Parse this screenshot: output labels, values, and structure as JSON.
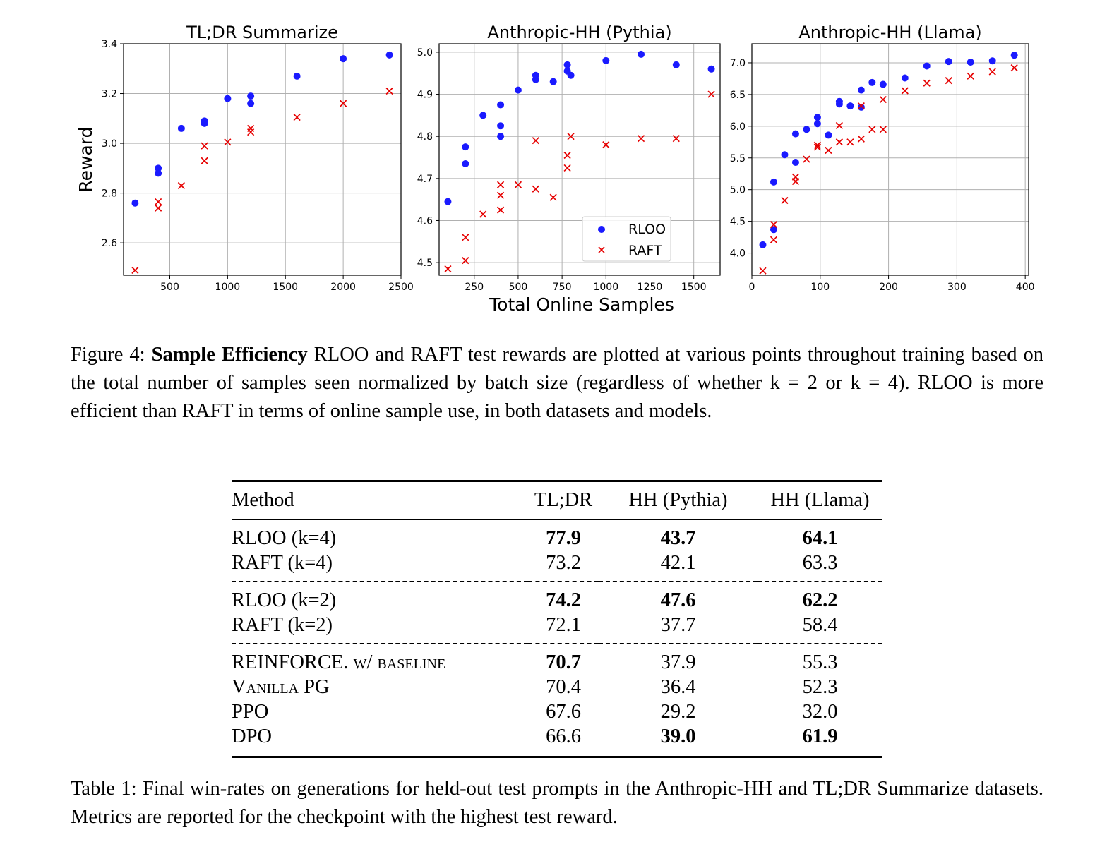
{
  "figure": {
    "shared_xlabel": "Total Online Samples",
    "shared_ylabel": "Reward",
    "legend": {
      "placement": "lower-right of middle panel",
      "entries": [
        {
          "name": "RLOO",
          "color": "#1a1aff",
          "marker": "circle"
        },
        {
          "name": "RAFT",
          "color": "#e60000",
          "marker": "x"
        }
      ]
    },
    "caption_label": "Figure 4:",
    "caption_bold": "Sample Efficiency",
    "caption_text": "RLOO and RAFT test rewards are plotted at various points throughout training based on the total number of samples seen normalized by batch size (regardless of whether k = 2 or k = 4). RLOO is more efficient than RAFT in terms of online sample use, in both datasets and models."
  },
  "chart_data": [
    {
      "type": "scatter",
      "title": "TL;DR Summarize",
      "xlabel": "",
      "ylabel": "Reward",
      "xlim": [
        100,
        2500
      ],
      "ylim": [
        2.47,
        3.4
      ],
      "xticks": [
        500,
        1000,
        1500,
        2000,
        2500
      ],
      "yticks": [
        2.6,
        2.8,
        3.0,
        3.2,
        3.4
      ],
      "ytick_labels": [
        "2.6",
        "2.8",
        "3.0",
        "3.2",
        "3.4"
      ],
      "grid": true,
      "series": [
        {
          "name": "RLOO",
          "color": "#1a1aff",
          "marker": "circle",
          "x": [
            200,
            400,
            400,
            600,
            800,
            800,
            1000,
            1200,
            1200,
            1600,
            2000,
            2400
          ],
          "y": [
            2.76,
            2.9,
            2.88,
            3.06,
            3.09,
            3.08,
            3.18,
            3.19,
            3.16,
            3.27,
            3.34,
            3.355
          ]
        },
        {
          "name": "RAFT",
          "color": "#e60000",
          "marker": "x",
          "x": [
            200,
            400,
            400,
            600,
            800,
            800,
            1000,
            1200,
            1200,
            1600,
            2000,
            2400
          ],
          "y": [
            2.49,
            2.765,
            2.74,
            2.83,
            2.99,
            2.93,
            3.005,
            3.06,
            3.045,
            3.105,
            3.16,
            3.21
          ]
        }
      ]
    },
    {
      "type": "scatter",
      "title": "Anthropic-HH (Pythia)",
      "xlabel": "Total Online Samples",
      "ylabel": "",
      "xlim": [
        50,
        1650
      ],
      "ylim": [
        4.47,
        5.02
      ],
      "xticks": [
        250,
        500,
        750,
        1000,
        1250,
        1500
      ],
      "yticks": [
        4.5,
        4.6,
        4.7,
        4.8,
        4.9,
        5.0
      ],
      "ytick_labels": [
        "4.5",
        "4.6",
        "4.7",
        "4.8",
        "4.9",
        "5.0"
      ],
      "grid": true,
      "series": [
        {
          "name": "RLOO",
          "color": "#1a1aff",
          "marker": "circle",
          "x": [
            100,
            200,
            200,
            300,
            400,
            400,
            400,
            500,
            600,
            600,
            700,
            780,
            780,
            800,
            1000,
            1200,
            1400,
            1600
          ],
          "y": [
            4.645,
            4.775,
            4.735,
            4.85,
            4.875,
            4.825,
            4.8,
            4.91,
            4.945,
            4.935,
            4.93,
            4.97,
            4.955,
            4.945,
            4.98,
            4.995,
            4.97,
            4.96
          ]
        },
        {
          "name": "RAFT",
          "color": "#e60000",
          "marker": "x",
          "x": [
            100,
            200,
            200,
            300,
            400,
            400,
            400,
            500,
            600,
            600,
            700,
            780,
            780,
            800,
            1000,
            1200,
            1400,
            1600
          ],
          "y": [
            4.485,
            4.56,
            4.505,
            4.615,
            4.685,
            4.66,
            4.625,
            4.685,
            4.79,
            4.675,
            4.655,
            4.755,
            4.725,
            4.8,
            4.78,
            4.795,
            4.795,
            4.9
          ]
        }
      ]
    },
    {
      "type": "scatter",
      "title": "Anthropic-HH (Llama)",
      "xlabel": "",
      "ylabel": "",
      "xlim": [
        0,
        405
      ],
      "ylim": [
        3.65,
        7.3
      ],
      "xticks": [
        0,
        100,
        200,
        300,
        400
      ],
      "yticks": [
        4.0,
        4.5,
        5.0,
        5.5,
        6.0,
        6.5,
        7.0
      ],
      "ytick_labels": [
        "4.0",
        "4.5",
        "5.0",
        "5.5",
        "6.0",
        "6.5",
        "7.0"
      ],
      "grid": true,
      "series": [
        {
          "name": "RLOO",
          "color": "#1a1aff",
          "marker": "circle",
          "x": [
            16,
            32,
            32,
            48,
            64,
            64,
            80,
            96,
            96,
            112,
            128,
            128,
            144,
            160,
            160,
            176,
            192,
            224,
            256,
            288,
            320,
            352,
            384
          ],
          "y": [
            4.13,
            4.37,
            5.12,
            5.55,
            5.88,
            5.43,
            5.95,
            6.14,
            6.04,
            5.86,
            6.39,
            6.35,
            6.32,
            6.57,
            6.3,
            6.69,
            6.66,
            6.76,
            6.95,
            7.02,
            7.01,
            7.03,
            7.12
          ]
        },
        {
          "name": "RAFT",
          "color": "#e60000",
          "marker": "x",
          "x": [
            16,
            32,
            32,
            48,
            64,
            64,
            80,
            96,
            96,
            112,
            128,
            128,
            144,
            160,
            160,
            176,
            192,
            192,
            224,
            256,
            288,
            320,
            352,
            384
          ],
          "y": [
            3.72,
            4.45,
            4.21,
            4.83,
            5.2,
            5.13,
            5.48,
            5.7,
            5.67,
            5.62,
            6.01,
            5.75,
            5.75,
            5.8,
            6.32,
            5.95,
            6.42,
            5.95,
            6.56,
            6.68,
            6.72,
            6.79,
            6.86,
            6.92
          ]
        }
      ]
    }
  ],
  "table": {
    "headers": [
      "Method",
      "TL;DR",
      "HH (Pythia)",
      "HH (Llama)"
    ],
    "rows": [
      {
        "method": "RLOO (k=4)",
        "tldr": "77.9",
        "pythia": "43.7",
        "llama": "64.1"
      },
      {
        "method": "RAFT (k=4)",
        "tldr": "73.2",
        "pythia": "42.1",
        "llama": "63.3"
      },
      {
        "method": "RLOO (k=2)",
        "tldr": "74.2",
        "pythia": "47.6",
        "llama": "62.2"
      },
      {
        "method": "RAFT (k=2)",
        "tldr": "72.1",
        "pythia": "37.7",
        "llama": "58.4"
      },
      {
        "method": "REINFORCE. w/ baseline",
        "tldr": "70.7",
        "pythia": "37.9",
        "llama": "55.3"
      },
      {
        "method": "Vanilla PG",
        "tldr": "70.4",
        "pythia": "36.4",
        "llama": "52.3"
      },
      {
        "method": "PPO",
        "tldr": "67.6",
        "pythia": "29.2",
        "llama": "32.0"
      },
      {
        "method": "DPO",
        "tldr": "66.6",
        "pythia": "39.0",
        "llama": "61.9"
      }
    ],
    "caption_label": "Table 1:",
    "caption_text": "Final win-rates on generations for held-out test prompts in the Anthropic-HH and TL;DR Summarize datasets. Metrics are reported for the checkpoint with the highest test reward."
  }
}
